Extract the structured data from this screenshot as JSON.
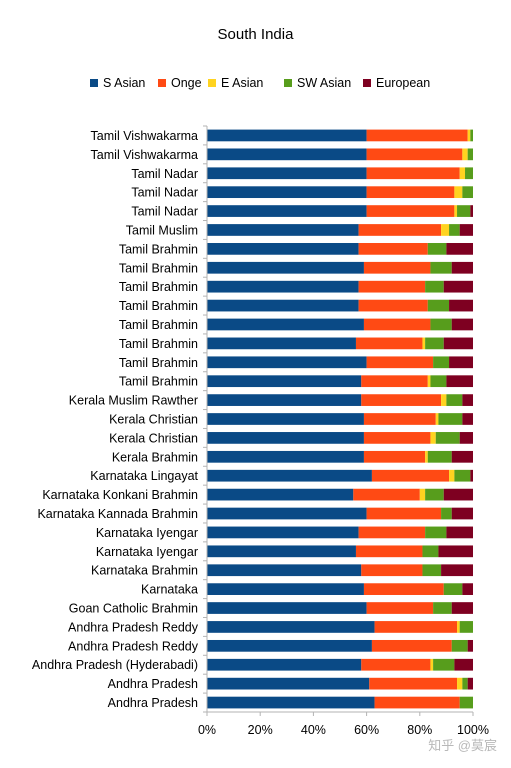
{
  "chart_data": {
    "type": "bar",
    "orientation": "horizontal",
    "stacked": "percent",
    "title": "South India",
    "xlabel": "",
    "ylabel": "",
    "xlim": [
      0,
      100
    ],
    "x_ticks": [
      "0%",
      "20%",
      "40%",
      "60%",
      "80%",
      "100%"
    ],
    "grid": false,
    "legend_position": "top",
    "categories": [
      "Tamil Vishwakarma",
      "Tamil Vishwakarma",
      "Tamil Nadar",
      "Tamil Nadar",
      "Tamil Nadar",
      "Tamil Muslim",
      "Tamil Brahmin",
      "Tamil Brahmin",
      "Tamil Brahmin",
      "Tamil Brahmin",
      "Tamil Brahmin",
      "Tamil Brahmin",
      "Tamil Brahmin",
      "Tamil Brahmin",
      "Kerala Muslim Rawther",
      "Kerala Christian",
      "Kerala Christian",
      "Kerala Brahmin",
      "Karnataka Lingayat",
      "Karnataka Konkani Brahmin",
      "Karnataka Kannada Brahmin",
      "Karnataka Iyengar",
      "Karnataka Iyengar",
      "Karnataka Brahmin",
      "Karnataka",
      "Goan Catholic Brahmin",
      "Andhra Pradesh Reddy",
      "Andhra Pradesh Reddy",
      "Andhra Pradesh (Hyderabadi)",
      "Andhra Pradesh",
      "Andhra Pradesh"
    ],
    "series": [
      {
        "name": "S Asian",
        "color": "#0a4a86",
        "values": [
          60,
          60,
          60,
          60,
          60,
          57,
          57,
          59,
          57,
          57,
          59,
          56,
          60,
          58,
          58,
          59,
          59,
          59,
          62,
          55,
          60,
          57,
          56,
          58,
          59,
          60,
          63,
          62,
          58,
          61,
          63
        ]
      },
      {
        "name": "Onge",
        "color": "#ff4a14",
        "values": [
          38,
          36,
          35,
          33,
          33,
          31,
          26,
          25,
          25,
          26,
          25,
          25,
          25,
          25,
          30,
          27,
          25,
          23,
          29,
          25,
          28,
          25,
          25,
          23,
          30,
          25,
          31,
          30,
          26,
          33,
          32
        ]
      },
      {
        "name": "E Asian",
        "color": "#ffd320",
        "values": [
          1,
          2,
          2,
          3,
          1,
          3,
          0,
          0,
          0,
          0,
          0,
          1,
          0,
          1,
          2,
          1,
          2,
          1,
          2,
          2,
          0,
          0,
          0,
          0,
          0,
          0,
          1,
          0,
          1,
          2,
          0
        ]
      },
      {
        "name": "SW Asian",
        "color": "#579d1c",
        "values": [
          1,
          2,
          3,
          4,
          5,
          4,
          7,
          8,
          7,
          8,
          8,
          7,
          6,
          6,
          6,
          9,
          9,
          9,
          6,
          7,
          4,
          8,
          6,
          7,
          7,
          7,
          5,
          6,
          8,
          2,
          5
        ]
      },
      {
        "name": "European",
        "color": "#7e0021",
        "values": [
          0,
          0,
          0,
          0,
          1,
          5,
          10,
          8,
          11,
          9,
          8,
          11,
          9,
          10,
          4,
          4,
          5,
          8,
          1,
          11,
          8,
          10,
          13,
          12,
          4,
          8,
          0,
          2,
          7,
          2,
          0
        ]
      }
    ]
  },
  "watermark": "知乎 @莫宸"
}
